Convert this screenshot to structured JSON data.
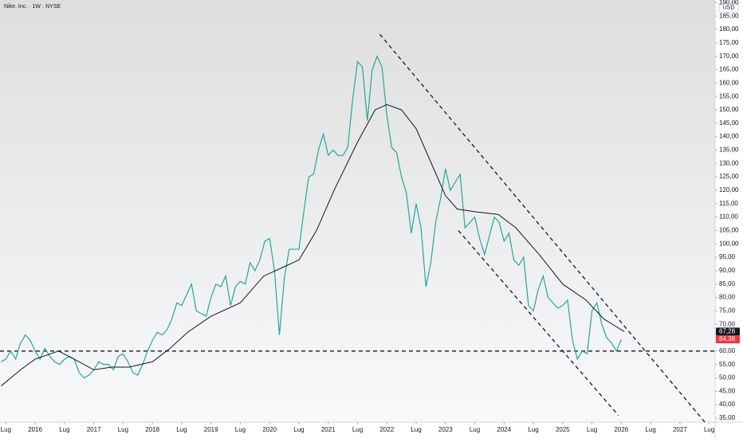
{
  "chart_data": {
    "type": "line",
    "title": "Nike, Inc. · 1W · NYSE",
    "currency": "USD",
    "xlim": [
      2015.4,
      2027.6
    ],
    "ylim": [
      33.5,
      191
    ],
    "xticks": [
      {
        "value": 2015.5,
        "label": "Lug"
      },
      {
        "value": 2016,
        "label": "2016"
      },
      {
        "value": 2016.5,
        "label": "Lug"
      },
      {
        "value": 2017,
        "label": "2017"
      },
      {
        "value": 2017.5,
        "label": "Lug"
      },
      {
        "value": 2018,
        "label": "2018"
      },
      {
        "value": 2018.5,
        "label": "Lug"
      },
      {
        "value": 2019,
        "label": "2019"
      },
      {
        "value": 2019.5,
        "label": "Lug"
      },
      {
        "value": 2020,
        "label": "2020"
      },
      {
        "value": 2020.5,
        "label": "Lug"
      },
      {
        "value": 2021,
        "label": "2021"
      },
      {
        "value": 2021.5,
        "label": "Lug"
      },
      {
        "value": 2022,
        "label": "2022"
      },
      {
        "value": 2022.5,
        "label": "Lug"
      },
      {
        "value": 2023,
        "label": "2023"
      },
      {
        "value": 2023.5,
        "label": "Lug"
      },
      {
        "value": 2024,
        "label": "2024"
      },
      {
        "value": 2024.5,
        "label": "Lug"
      },
      {
        "value": 2025,
        "label": "2025"
      },
      {
        "value": 2025.5,
        "label": "Lug"
      },
      {
        "value": 2026,
        "label": "2026"
      },
      {
        "value": 2026.5,
        "label": "Lug"
      },
      {
        "value": 2027,
        "label": "2027"
      },
      {
        "value": 2027.5,
        "label": "Lug"
      }
    ],
    "yticks": [
      {
        "value": 35,
        "label": "35,00"
      },
      {
        "value": 40,
        "label": "40,00"
      },
      {
        "value": 45,
        "label": "45,00"
      },
      {
        "value": 50,
        "label": "50,00"
      },
      {
        "value": 55,
        "label": "55,00"
      },
      {
        "value": 60,
        "label": "60,00"
      },
      {
        "value": 65,
        "label": "65,00"
      },
      {
        "value": 70,
        "label": "70,00"
      },
      {
        "value": 75,
        "label": "75,00"
      },
      {
        "value": 80,
        "label": "80,00"
      },
      {
        "value": 85,
        "label": "85,00"
      },
      {
        "value": 90,
        "label": "90,00"
      },
      {
        "value": 95,
        "label": "95,00"
      },
      {
        "value": 100,
        "label": "100,00"
      },
      {
        "value": 105,
        "label": "105,00"
      },
      {
        "value": 110,
        "label": "110,00"
      },
      {
        "value": 115,
        "label": "115,00"
      },
      {
        "value": 120,
        "label": "120,00"
      },
      {
        "value": 125,
        "label": "125,00"
      },
      {
        "value": 130,
        "label": "130,00"
      },
      {
        "value": 135,
        "label": "135,00"
      },
      {
        "value": 140,
        "label": "140,00"
      },
      {
        "value": 145,
        "label": "145,00"
      },
      {
        "value": 150,
        "label": "150,00"
      },
      {
        "value": 155,
        "label": "155,00"
      },
      {
        "value": 160,
        "label": "160,00"
      },
      {
        "value": 165,
        "label": "165,00"
      },
      {
        "value": 170,
        "label": "170,00"
      },
      {
        "value": 175,
        "label": "175,00"
      },
      {
        "value": 180,
        "label": "180,00"
      },
      {
        "value": 185,
        "label": "185,00"
      },
      {
        "value": 190,
        "label": "190,00"
      }
    ],
    "series": [
      {
        "color": "#26a69a",
        "x": [
          2015.417,
          2015.5,
          2015.583,
          2015.667,
          2015.75,
          2015.833,
          2015.917,
          2016,
          2016.083,
          2016.167,
          2016.25,
          2016.333,
          2016.417,
          2016.5,
          2016.583,
          2016.667,
          2016.75,
          2016.833,
          2016.917,
          2017,
          2017.083,
          2017.167,
          2017.25,
          2017.333,
          2017.417,
          2017.5,
          2017.583,
          2017.667,
          2017.75,
          2017.833,
          2017.917,
          2018,
          2018.083,
          2018.167,
          2018.25,
          2018.333,
          2018.417,
          2018.5,
          2018.583,
          2018.667,
          2018.75,
          2018.833,
          2018.917,
          2019,
          2019.083,
          2019.167,
          2019.25,
          2019.333,
          2019.417,
          2019.5,
          2019.583,
          2019.667,
          2019.75,
          2019.833,
          2019.917,
          2020,
          2020.083,
          2020.167,
          2020.25,
          2020.333,
          2020.417,
          2020.5,
          2020.583,
          2020.667,
          2020.75,
          2020.833,
          2020.917,
          2021,
          2021.083,
          2021.167,
          2021.25,
          2021.333,
          2021.417,
          2021.5,
          2021.583,
          2021.667,
          2021.75,
          2021.833,
          2021.917,
          2022,
          2022.083,
          2022.167,
          2022.25,
          2022.333,
          2022.417,
          2022.5,
          2022.583,
          2022.667,
          2022.75,
          2022.833,
          2022.917,
          2023,
          2023.083,
          2023.167,
          2023.25,
          2023.333,
          2023.417,
          2023.5,
          2023.583,
          2023.667,
          2023.75,
          2023.833,
          2023.917,
          2024,
          2024.083,
          2024.167,
          2024.25,
          2024.333,
          2024.417,
          2024.5,
          2024.583,
          2024.667,
          2024.75,
          2024.833,
          2024.917,
          2025,
          2025.083,
          2025.167,
          2025.25,
          2025.333,
          2025.417,
          2025.5,
          2025.583,
          2025.667,
          2025.75,
          2025.833,
          2025.917,
          2026
        ],
        "values": [
          56,
          57,
          60,
          57,
          63,
          66,
          64,
          60,
          57,
          61,
          58,
          56,
          55,
          57,
          58,
          57,
          52,
          50,
          51,
          53,
          56,
          55,
          55,
          53,
          58,
          59,
          56,
          52,
          51,
          55,
          60,
          64,
          67,
          66,
          68,
          72,
          78,
          77,
          81,
          85,
          75,
          74,
          73,
          80,
          85,
          84,
          88,
          77,
          84,
          86,
          85,
          93,
          90,
          94,
          101,
          102,
          90,
          66,
          87,
          98,
          98,
          98,
          112,
          125,
          126,
          135,
          141,
          133,
          135,
          133,
          133,
          136,
          154,
          168,
          166,
          146,
          165,
          170,
          166,
          148,
          136,
          134,
          125,
          119,
          104,
          115,
          106,
          84,
          93,
          108,
          117,
          128,
          120,
          123,
          126,
          106,
          108,
          110,
          102,
          96,
          103,
          110,
          108,
          101,
          104,
          94,
          92,
          95,
          77,
          75,
          83,
          88,
          80,
          78,
          76,
          77,
          79,
          64,
          57,
          60,
          59,
          75,
          78,
          70,
          65,
          63,
          60,
          64.38
        ]
      },
      {
        "color": "#131722",
        "x": [
          2015.42,
          2015.75,
          2016,
          2016.4,
          2016.75,
          2017,
          2017.3,
          2017.6,
          2018,
          2018.3,
          2018.6,
          2019,
          2019.5,
          2019.9,
          2020.2,
          2020.5,
          2020.8,
          2021.1,
          2021.5,
          2021.8,
          2022,
          2022.25,
          2022.5,
          2022.8,
          2023,
          2023.2,
          2023.5,
          2023.9,
          2024.2,
          2024.6,
          2025,
          2025.4,
          2025.7,
          2026.05
        ],
        "values": [
          47,
          53,
          57,
          60,
          56,
          53,
          54,
          54,
          56,
          61,
          67,
          73,
          78,
          88,
          91,
          94,
          105,
          120,
          138,
          150,
          152,
          150,
          143,
          128,
          118,
          113,
          112,
          111,
          106,
          96,
          85,
          79,
          72,
          67.28
        ]
      }
    ],
    "trend_lines": [
      {
        "x": [
          2015.4,
          2027.6
        ],
        "y": [
          60,
          60
        ]
      },
      {
        "x": [
          2021.88,
          2027.44
        ],
        "y": [
          178.2,
          33.1
        ]
      },
      {
        "x": [
          2023.22,
          2025.95
        ],
        "y": [
          105,
          36
        ]
      }
    ],
    "price_labels": [
      {
        "value": 67.28,
        "label": "67,28",
        "color": "#131722"
      },
      {
        "value": 64.38,
        "label": "64,38",
        "color": "#f23645"
      }
    ]
  }
}
